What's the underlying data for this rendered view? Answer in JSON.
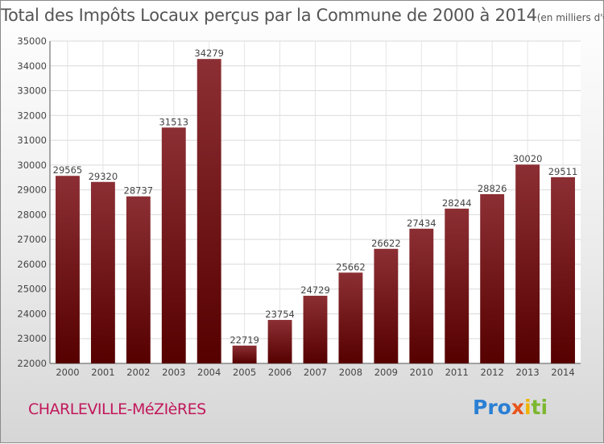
{
  "chart_data": {
    "type": "bar",
    "title": "Total des Impôts Locaux perçus par la Commune de 2000 à 2014",
    "title_unit": "(en milliers d'€)",
    "xlabel": "",
    "ylabel": "",
    "categories": [
      "2000",
      "2001",
      "2002",
      "2003",
      "2004",
      "2005",
      "2006",
      "2007",
      "2008",
      "2009",
      "2010",
      "2011",
      "2012",
      "2013",
      "2014"
    ],
    "values": [
      29565,
      29320,
      28737,
      31513,
      34279,
      22719,
      23754,
      24729,
      25662,
      26622,
      27434,
      28244,
      28826,
      30020,
      29511
    ],
    "ylim": [
      22000,
      35000
    ],
    "yticks": [
      22000,
      23000,
      24000,
      25000,
      26000,
      27000,
      28000,
      29000,
      30000,
      31000,
      32000,
      33000,
      34000,
      35000
    ],
    "grid": true,
    "bar_color_top": "#8c2f34",
    "bar_color_bottom": "#560000"
  },
  "commune": "CHARLEVILLE-MéZIèRES",
  "brand": {
    "p1": "Pro",
    "p2": "x",
    "p3": "i",
    "p4": "ti"
  }
}
